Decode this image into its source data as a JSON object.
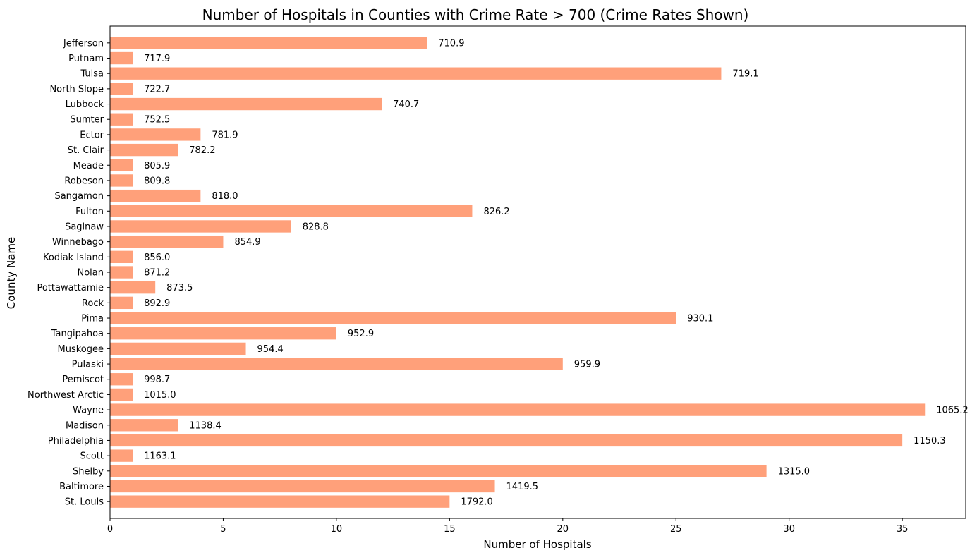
{
  "chart_data": {
    "type": "bar",
    "orientation": "horizontal",
    "title": "Number of Hospitals in Counties with Crime Rate > 700 (Crime Rates Shown)",
    "xlabel": "Number of Hospitals",
    "ylabel": "County Name",
    "xlim": [
      0,
      37.8
    ],
    "xticks": [
      "0",
      "5",
      "10",
      "15",
      "20",
      "25",
      "30",
      "35"
    ],
    "bar_color": "#FFA07A",
    "grid": false,
    "categories": [
      "Jefferson",
      "Putnam",
      "Tulsa",
      "North Slope",
      "Lubbock",
      "Sumter",
      "Ector",
      "St. Clair",
      "Meade",
      "Robeson",
      "Sangamon",
      "Fulton",
      "Saginaw",
      "Winnebago",
      "Kodiak Island",
      "Nolan",
      "Pottawattamie",
      "Rock",
      "Pima",
      "Tangipahoa",
      "Muskogee",
      "Pulaski",
      "Pemiscot",
      "Northwest Arctic",
      "Wayne",
      "Madison",
      "Philadelphia",
      "Scott",
      "Shelby",
      "Baltimore",
      "St. Louis"
    ],
    "values": [
      14,
      1,
      27,
      1,
      12,
      1,
      4,
      3,
      1,
      1,
      4,
      16,
      8,
      5,
      1,
      1,
      2,
      1,
      25,
      10,
      6,
      20,
      1,
      1,
      36,
      3,
      35,
      1,
      29,
      17,
      15
    ],
    "bar_labels": [
      "710.9",
      "717.9",
      "719.1",
      "722.7",
      "740.7",
      "752.5",
      "781.9",
      "782.2",
      "805.9",
      "809.8",
      "818.0",
      "826.2",
      "828.8",
      "854.9",
      "856.0",
      "871.2",
      "873.5",
      "892.9",
      "930.1",
      "952.9",
      "954.4",
      "959.9",
      "998.7",
      "1015.0",
      "1065.2",
      "1138.4",
      "1150.3",
      "1163.1",
      "1315.0",
      "1419.5",
      "1792.0"
    ]
  }
}
